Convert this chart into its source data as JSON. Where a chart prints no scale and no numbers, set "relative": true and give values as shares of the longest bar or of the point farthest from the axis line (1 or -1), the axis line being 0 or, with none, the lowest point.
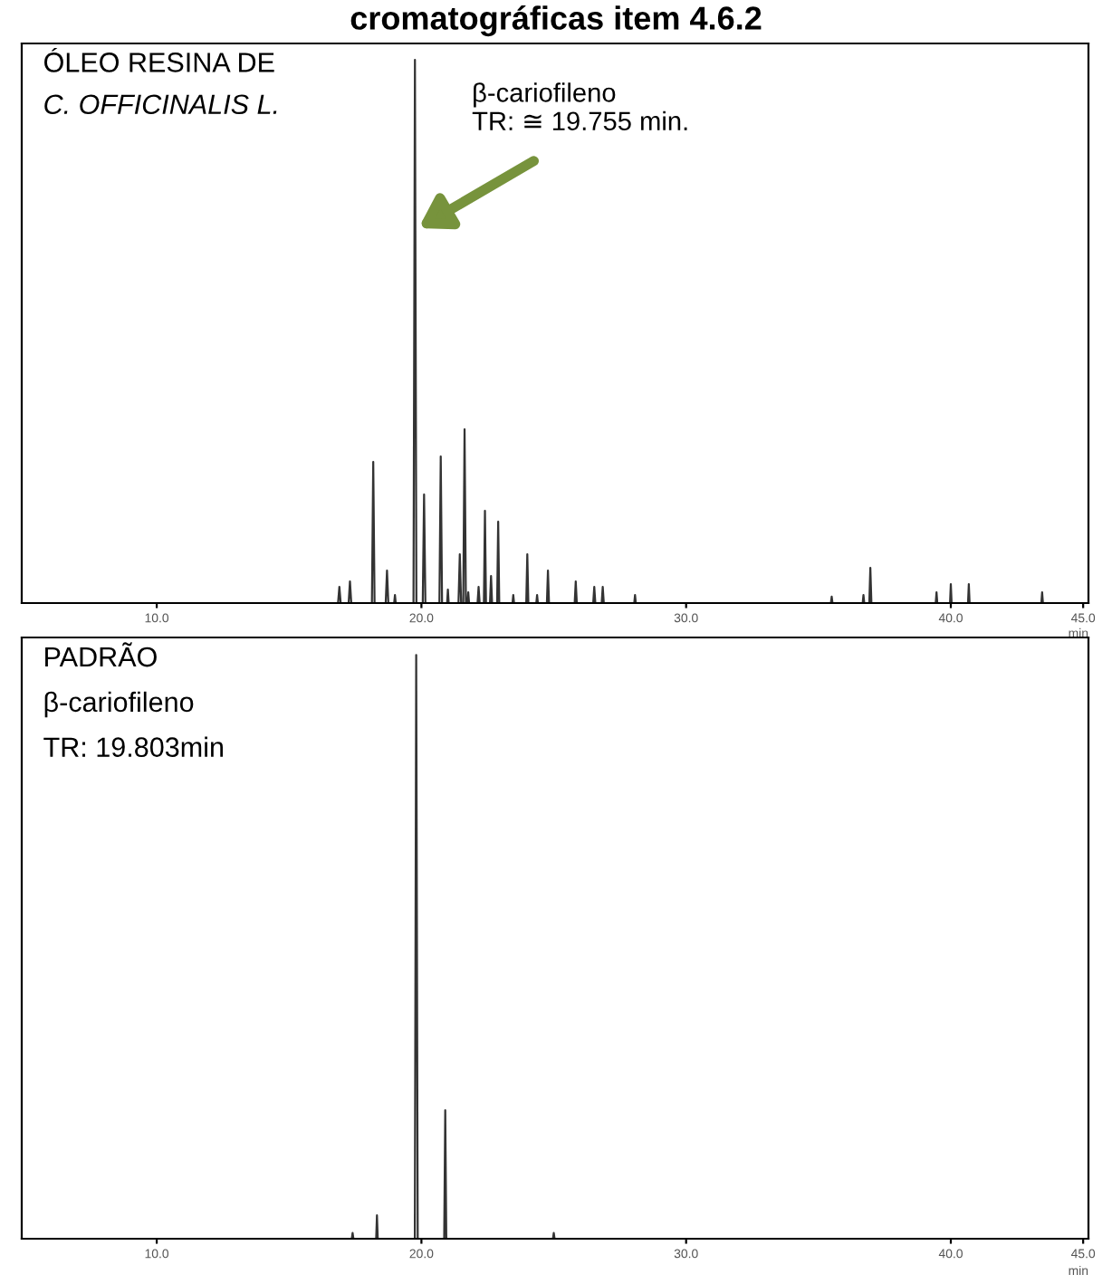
{
  "chart_data": [
    {
      "type": "line",
      "title": "cromatográficas item 4.6.2",
      "relative": true,
      "color": "#333333",
      "xlabel": "min",
      "tick_labels": "x",
      "xlim": [
        4.9,
        45.2
      ],
      "xticks": [
        {
          "value": 10,
          "label": "10.0"
        },
        {
          "value": 20,
          "label": "20.0"
        },
        {
          "value": 30,
          "label": "30.0"
        },
        {
          "value": 40,
          "label": "40.0"
        },
        {
          "value": 45,
          "label": "45.0"
        }
      ],
      "x": [
        5.0,
        16.85,
        16.9,
        16.95,
        17.25,
        17.3,
        17.35,
        18.13,
        18.18,
        18.23,
        18.65,
        18.7,
        18.75,
        18.97,
        19.0,
        19.03,
        19.7,
        19.755,
        19.81,
        20.05,
        20.1,
        20.15,
        20.68,
        20.73,
        20.78,
        20.97,
        21.0,
        21.03,
        21.4,
        21.45,
        21.5,
        21.58,
        21.63,
        21.68,
        21.74,
        21.77,
        21.8,
        22.12,
        22.16,
        22.2,
        22.36,
        22.4,
        22.44,
        22.59,
        22.63,
        22.67,
        22.86,
        22.9,
        22.94,
        23.44,
        23.47,
        23.5,
        23.96,
        24.0,
        24.04,
        24.34,
        24.37,
        24.4,
        24.74,
        24.78,
        24.82,
        25.79,
        25.83,
        25.87,
        26.49,
        26.53,
        26.57,
        26.81,
        26.85,
        26.89,
        28.04,
        28.07,
        28.1,
        35.47,
        35.5,
        35.53,
        36.67,
        36.7,
        36.73,
        36.92,
        36.96,
        37.0,
        39.43,
        39.46,
        39.49,
        39.97,
        40.0,
        40.03,
        40.65,
        40.68,
        40.71,
        43.42,
        43.45,
        43.48,
        45.2
      ],
      "values": [
        0,
        0,
        0.03,
        0,
        0,
        0.04,
        0,
        0,
        0.26,
        0,
        0,
        0.06,
        0,
        0,
        0.015,
        0,
        0,
        1,
        0,
        0,
        0.2,
        0,
        0,
        0.27,
        0,
        0,
        0.025,
        0,
        0,
        0.09,
        0,
        0,
        0.32,
        0,
        0,
        0.02,
        0,
        0,
        0.03,
        0,
        0,
        0.17,
        0,
        0,
        0.05,
        0,
        0,
        0.15,
        0,
        0,
        0.015,
        0,
        0,
        0.09,
        0,
        0,
        0.015,
        0,
        0,
        0.06,
        0,
        0,
        0.04,
        0,
        0,
        0.03,
        0,
        0,
        0.03,
        0,
        0,
        0.015,
        0,
        0,
        0.012,
        0,
        0,
        0.015,
        0,
        0,
        0.065,
        0,
        0,
        0.02,
        0,
        0,
        0.035,
        0,
        0,
        0.035,
        0,
        0,
        0.02,
        0,
        0
      ],
      "annotations": [
        "ÓLEO RESINA DE",
        "C. OFFICINALIS L.",
        "β-cariofileno\nTR: ≅ 19.755 min."
      ]
    },
    {
      "type": "line",
      "relative": true,
      "color": "#333333",
      "xlabel": "min",
      "tick_labels": "x",
      "xlim": [
        4.9,
        45.2
      ],
      "xticks": [
        {
          "value": 10,
          "label": "10.0"
        },
        {
          "value": 20,
          "label": "20.0"
        },
        {
          "value": 30,
          "label": "30.0"
        },
        {
          "value": 40,
          "label": "40.0"
        },
        {
          "value": 45,
          "label": "45.0"
        }
      ],
      "x": [
        5.0,
        17.37,
        17.4,
        17.43,
        18.29,
        18.32,
        18.35,
        19.75,
        19.803,
        19.86,
        20.86,
        20.9,
        20.94,
        24.97,
        25.0,
        25.03,
        45.2
      ],
      "values": [
        0,
        0,
        0.01,
        0,
        0,
        0.04,
        0,
        0,
        1,
        0,
        0,
        0.22,
        0,
        0,
        0.01,
        0,
        0
      ],
      "annotations": [
        "PADRÃO",
        "β-cariofileno",
        "TR: 19.803min"
      ]
    }
  ]
}
